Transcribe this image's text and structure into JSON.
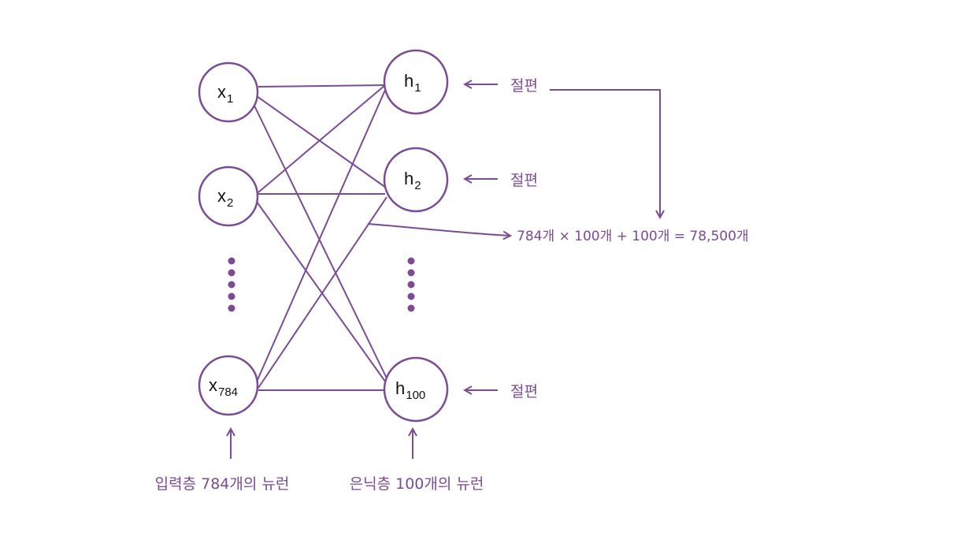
{
  "colors": {
    "accent": "#7b4b95",
    "node_stroke": "#7b4b95",
    "text": "#111111"
  },
  "input_nodes": [
    {
      "main": "x",
      "sub": "1"
    },
    {
      "main": "x",
      "sub": "2"
    },
    {
      "main": "x",
      "sub": "784"
    }
  ],
  "hidden_nodes": [
    {
      "main": "h",
      "sub": "1",
      "bias_label": "절편"
    },
    {
      "main": "h",
      "sub": "2",
      "bias_label": "절편"
    },
    {
      "main": "h",
      "sub": "100",
      "bias_label": "절편"
    }
  ],
  "formula": "784개 × 100개 + 100개 = 78,500개",
  "input_layer_caption": "입력층 784개의 뉴런",
  "hidden_layer_caption": "은닉층 100개의 뉴런"
}
